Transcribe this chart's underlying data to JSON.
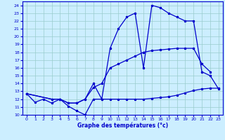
{
  "title": "Graphe des températures (°c)",
  "background_color": "#cceeff",
  "grid_color": "#99cccc",
  "line_color": "#0000cc",
  "xlim": [
    -0.5,
    23.5
  ],
  "ylim": [
    10,
    24.5
  ],
  "xticks": [
    0,
    1,
    2,
    3,
    4,
    5,
    6,
    7,
    8,
    9,
    10,
    11,
    12,
    13,
    14,
    15,
    16,
    17,
    18,
    19,
    20,
    21,
    22,
    23
  ],
  "yticks": [
    10,
    11,
    12,
    13,
    14,
    15,
    16,
    17,
    18,
    19,
    20,
    21,
    22,
    23,
    24
  ],
  "series1_x": [
    0,
    1,
    2,
    3,
    4,
    5,
    6,
    7,
    8,
    9,
    10,
    11,
    12,
    13,
    14,
    15,
    16,
    17,
    18,
    19,
    20,
    21,
    22,
    23
  ],
  "series1_y": [
    12.7,
    11.6,
    12.0,
    11.5,
    12.0,
    11.1,
    10.5,
    10.0,
    12.0,
    12.0,
    12.0,
    12.0,
    12.0,
    12.0,
    12.0,
    12.1,
    12.2,
    12.3,
    12.5,
    12.8,
    13.1,
    13.3,
    13.4,
    13.4
  ],
  "series2_x": [
    0,
    3,
    4,
    5,
    6,
    7,
    8,
    9,
    10,
    11,
    12,
    13,
    14,
    15,
    16,
    17,
    18,
    19,
    20,
    21,
    22
  ],
  "series2_y": [
    12.7,
    12.0,
    12.0,
    11.5,
    11.5,
    12.0,
    13.5,
    14.0,
    16.0,
    16.5,
    17.0,
    17.5,
    18.0,
    18.2,
    18.3,
    18.4,
    18.5,
    18.5,
    18.5,
    16.5,
    15.5
  ],
  "series3_x": [
    0,
    3,
    4,
    5,
    6,
    7,
    8,
    9,
    10,
    11,
    12,
    13,
    14,
    15,
    16,
    17,
    18,
    19,
    20,
    21,
    22,
    23
  ],
  "series3_y": [
    12.7,
    12.0,
    12.0,
    11.5,
    11.5,
    12.0,
    14.0,
    12.0,
    18.5,
    21.0,
    22.5,
    23.0,
    16.0,
    24.0,
    23.7,
    23.0,
    22.5,
    22.0,
    22.0,
    15.5,
    15.0,
    13.3
  ]
}
